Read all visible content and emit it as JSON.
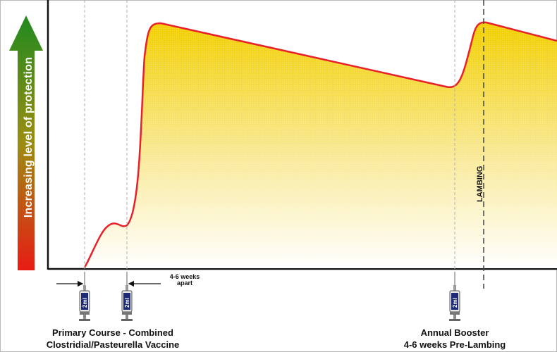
{
  "y_axis_label": "Increasing level of protection",
  "event_label": "LAMBING",
  "interval_label": [
    "4-6 weeks",
    "apart"
  ],
  "syringe_dose_label": "2ml",
  "caption_primary": [
    "Primary Course - Combined",
    "Clostridial/Pasteurella Vaccine"
  ],
  "caption_booster": [
    "Annual Booster",
    "4-6 weeks Pre-Lambing"
  ],
  "colors": {
    "curve": "#e8202a",
    "fill_top": "#f2cf00",
    "fill_bottom": "#ffffff",
    "arrow_top": "#1f8a1f",
    "arrow_bottom": "#e81c14",
    "syringe_label": "#1c2a78"
  }
}
